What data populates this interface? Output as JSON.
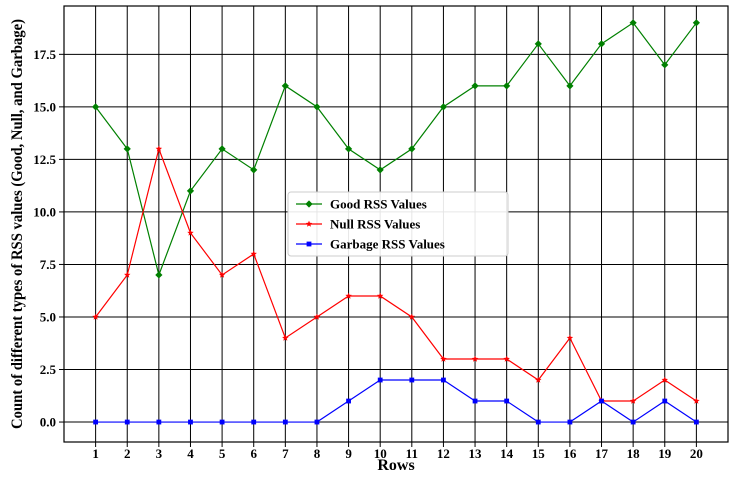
{
  "chart_data": {
    "type": "line",
    "title": "",
    "xlabel": "Rows",
    "ylabel": "Count of different types of RSS values (Good, Null, and Garbage)",
    "x": [
      1,
      2,
      3,
      4,
      5,
      6,
      7,
      8,
      9,
      10,
      11,
      12,
      13,
      14,
      15,
      16,
      17,
      18,
      19,
      20
    ],
    "xlim": [
      0,
      21
    ],
    "ylim": [
      -0.95,
      19.8
    ],
    "yticks": [
      0.0,
      2.5,
      5.0,
      7.5,
      10.0,
      12.5,
      15.0,
      17.5
    ],
    "ytick_labels": [
      "0.0",
      "2.5",
      "5.0",
      "7.5",
      "10.0",
      "12.5",
      "15.0",
      "17.5"
    ],
    "grid": true,
    "legend_position": "center",
    "series": [
      {
        "name": "Good RSS Values",
        "color": "#008000",
        "marker": "diamond",
        "values": [
          15,
          13,
          7,
          11,
          13,
          12,
          16,
          15,
          13,
          12,
          13,
          15,
          16,
          16,
          18,
          16,
          18,
          19,
          17,
          19
        ]
      },
      {
        "name": "Null RSS Values",
        "color": "#ff0000",
        "marker": "star",
        "values": [
          5,
          7,
          13,
          9,
          7,
          8,
          4,
          5,
          6,
          6,
          5,
          3,
          3,
          3,
          2,
          4,
          1,
          1,
          2,
          1
        ]
      },
      {
        "name": "Garbage RSS Values",
        "color": "#0000ff",
        "marker": "square",
        "values": [
          0,
          0,
          0,
          0,
          0,
          0,
          0,
          0,
          1,
          2,
          2,
          2,
          1,
          1,
          0,
          0,
          1,
          0,
          1,
          0
        ]
      }
    ]
  }
}
